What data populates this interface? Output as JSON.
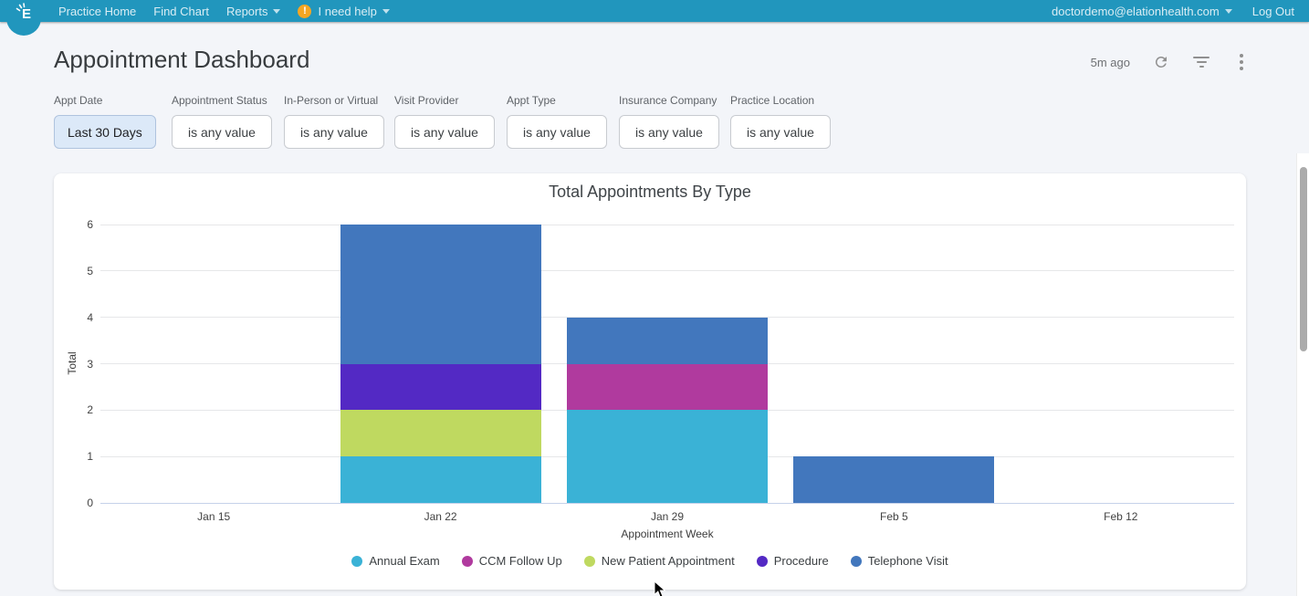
{
  "navbar": {
    "brand": "Elation",
    "items": [
      {
        "label": "Practice Home"
      },
      {
        "label": "Find Chart"
      },
      {
        "label": "Reports"
      }
    ],
    "help_label": "I need help",
    "account_label": "doctordemo@elationhealth.com",
    "logout_label": "Log Out",
    "colors": {
      "background": "#2196BD",
      "text": "#D9EDF4",
      "alert_icon": "#F5A623"
    }
  },
  "header": {
    "title": "Appointment Dashboard",
    "updated": "5m ago",
    "action_icons": [
      "refresh-icon",
      "filter-icon",
      "kebab-menu-icon"
    ]
  },
  "filters": [
    {
      "label": "Appt Date",
      "value": "Last 30 Days",
      "active": true
    },
    {
      "label": "Appointment Status",
      "value": "is any value",
      "active": false
    },
    {
      "label": "In-Person or Virtual",
      "value": "is any value",
      "active": false
    },
    {
      "label": "Visit Provider",
      "value": "is any value",
      "active": false
    },
    {
      "label": "Appt Type",
      "value": "is any value",
      "active": false
    },
    {
      "label": "Insurance Company",
      "value": "is any value",
      "active": false
    },
    {
      "label": "Practice Location",
      "value": "is any value",
      "active": false
    }
  ],
  "chart_data": {
    "type": "bar",
    "stacked": true,
    "title": "Total Appointments By Type",
    "xlabel": "Appointment Week",
    "ylabel": "Total",
    "ylim": [
      0,
      6
    ],
    "ytick_step": 1,
    "grid": true,
    "legend_position": "bottom",
    "categories": [
      "Jan 15",
      "Jan 22",
      "Jan 29",
      "Feb 5",
      "Feb 12"
    ],
    "series": [
      {
        "name": "Annual Exam",
        "color": "#3AB2D6",
        "values": [
          0,
          1,
          2,
          0,
          0
        ]
      },
      {
        "name": "CCM Follow Up",
        "color": "#B03A9E",
        "values": [
          0,
          0,
          1,
          0,
          0
        ]
      },
      {
        "name": "New Patient Appointment",
        "color": "#BFD960",
        "values": [
          0,
          1,
          0,
          0,
          0
        ]
      },
      {
        "name": "Procedure",
        "color": "#5329C4",
        "values": [
          0,
          1,
          0,
          0,
          0
        ]
      },
      {
        "name": "Telephone Visit",
        "color": "#4277BD",
        "values": [
          0,
          3,
          1,
          1,
          0
        ]
      }
    ]
  },
  "page": {
    "background": "#F3F5F9",
    "card_background": "#FFFFFF",
    "active_chip_background": "#DCE9F8"
  }
}
